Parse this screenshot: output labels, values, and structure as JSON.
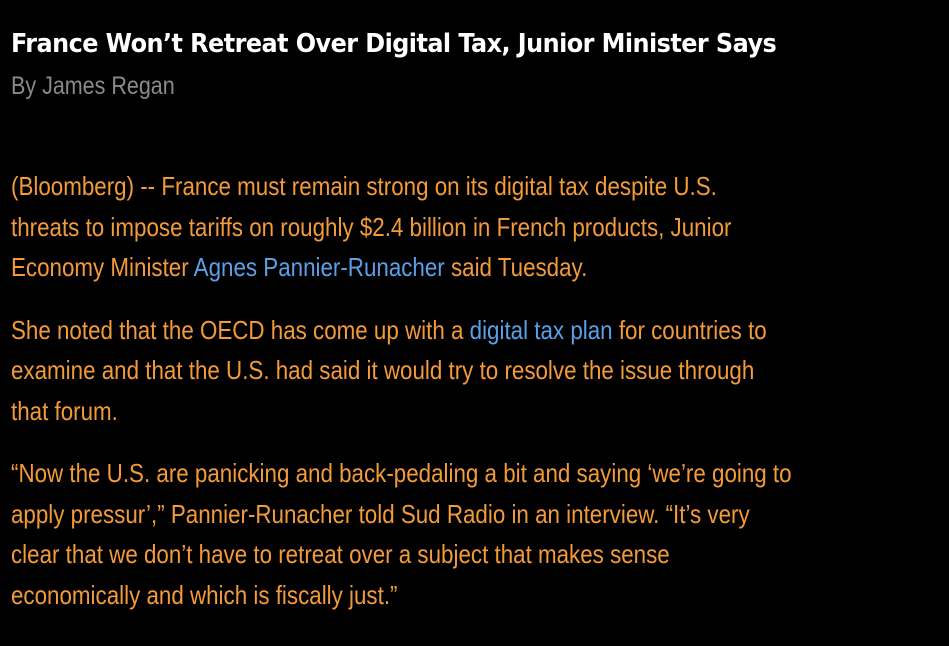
{
  "article": {
    "headline": "France Won’t Retreat Over Digital Tax, Junior Minister Says",
    "byline": "By James Regan",
    "paragraphs": [
      {
        "lines": [
          {
            "before": "(Bloomberg) -- France must remain strong on its digital tax despite U.S."
          },
          {
            "before": "threats to impose tariffs on roughly $2.4 billion in French products, Junior"
          },
          {
            "before": "Economy Minister ",
            "link": "Agnes Pannier-Runacher",
            "after": " said Tuesday."
          }
        ]
      },
      {
        "lines": [
          {
            "before": "She noted that the OECD has come up with a ",
            "link": "digital tax plan",
            "after": " for countries to"
          },
          {
            "before": "examine and that the U.S. had said it would try to resolve the issue through"
          },
          {
            "before": "that forum."
          }
        ]
      },
      {
        "lines": [
          {
            "before": "“Now the U.S. are panicking and back-pedaling a bit and saying ‘we’re going to"
          },
          {
            "before": "apply pressur’,” Pannier-Runacher told Sud Radio in an interview. “It’s very"
          },
          {
            "before": "clear that we don’t have to retreat over a subject that makes sense"
          },
          {
            "before": "economically and which is fiscally just.”"
          }
        ]
      }
    ]
  },
  "colors": {
    "background": "#000000",
    "headline": "#ffffff",
    "byline": "#8a8a8a",
    "body_text": "#f39a3a",
    "link": "#5aa0e6"
  }
}
